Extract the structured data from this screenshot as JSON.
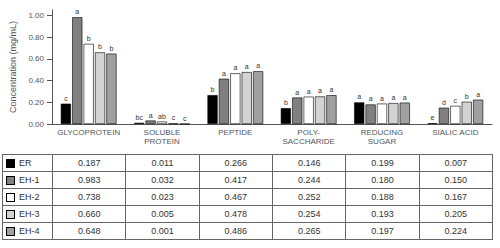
{
  "chart_data": {
    "type": "bar",
    "categories": [
      "GLYCOPROTEIN",
      "SOLUBLE\nPROTEIN",
      "PEPTIDE",
      "POLY-\nSACCHARIDE",
      "REDUCING\nSUGAR",
      "SIALIC ACID"
    ],
    "series": [
      {
        "name": "ER",
        "color": "#000000",
        "values": [
          0.187,
          0.011,
          0.266,
          0.146,
          0.199,
          0.007
        ],
        "annotations": [
          "c",
          "bc",
          "b",
          "b",
          "a",
          "e"
        ]
      },
      {
        "name": "EH-1",
        "color": "#808080",
        "values": [
          0.983,
          0.032,
          0.417,
          0.244,
          0.18,
          0.15
        ],
        "annotations": [
          "a",
          "a",
          "a",
          "a",
          "a",
          "d"
        ]
      },
      {
        "name": "EH-2",
        "color": "#ffffff",
        "values": [
          0.738,
          0.023,
          0.467,
          0.252,
          0.188,
          0.167
        ],
        "annotations": [
          "b",
          "ab",
          "a",
          "a",
          "a",
          "c"
        ]
      },
      {
        "name": "EH-3",
        "color": "#d3d3d3",
        "values": [
          0.66,
          0.005,
          0.478,
          0.254,
          0.193,
          0.205
        ],
        "annotations": [
          "b",
          "c",
          "a",
          "a",
          "a",
          "b"
        ]
      },
      {
        "name": "EH-4",
        "color": "#a0a0a0",
        "values": [
          0.648,
          0.001,
          0.486,
          0.265,
          0.197,
          0.224
        ],
        "annotations": [
          "b",
          "c",
          "a",
          "a",
          "a",
          "a"
        ]
      }
    ],
    "ylabel": "Concentration (mg/mL)",
    "ylim": [
      0,
      1.05
    ],
    "yticks": [
      {
        "value": 0,
        "label": "0.00"
      },
      {
        "value": 0.2,
        "label": "0.20"
      },
      {
        "value": 0.4,
        "label": "0.40"
      },
      {
        "value": 0.6,
        "label": "0.60"
      },
      {
        "value": 0.8,
        "label": "0.80"
      },
      {
        "value": 1,
        "label": "1.00"
      }
    ],
    "grid": false,
    "table": [
      [
        "ER",
        "0.187",
        "0.011",
        "0.266",
        "0.146",
        "0.199",
        "0.007"
      ],
      [
        "EH-1",
        "0.983",
        "0.032",
        "0.417",
        "0.244",
        "0.180",
        "0.150"
      ],
      [
        "EH-2",
        "0.738",
        "0.023",
        "0.467",
        "0.252",
        "0.188",
        "0.167"
      ],
      [
        "EH-3",
        "0.660",
        "0.005",
        "0.478",
        "0.254",
        "0.193",
        "0.205"
      ],
      [
        "EH-4",
        "0.648",
        "0.001",
        "0.486",
        "0.265",
        "0.197",
        "0.224"
      ]
    ]
  }
}
